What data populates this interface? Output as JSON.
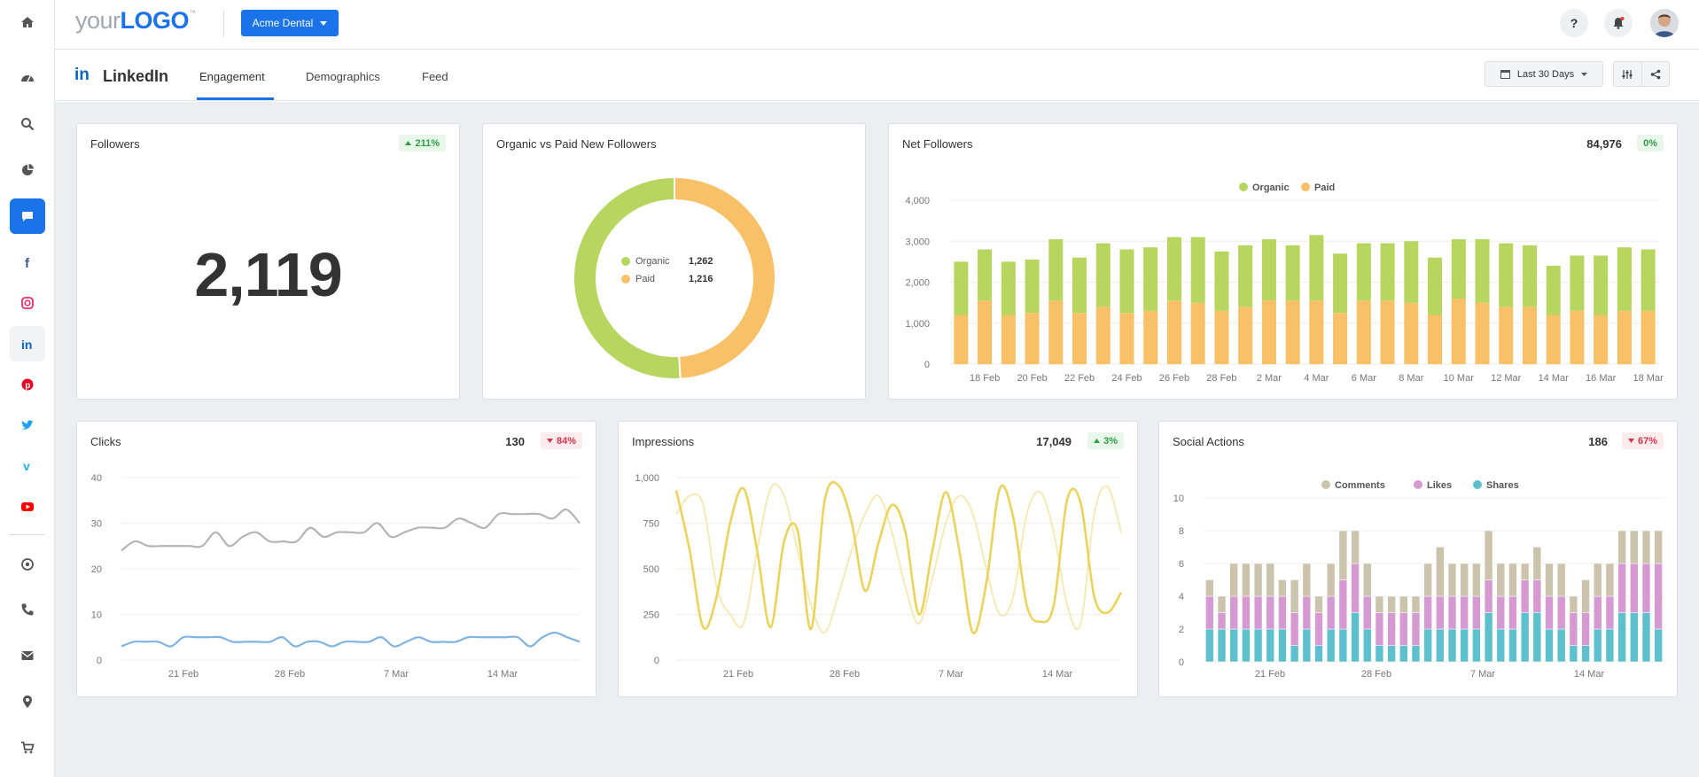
{
  "header": {
    "logo_prefix": "your",
    "logo_brand": "LOGO",
    "logo_tm": "™",
    "client_button": "Acme Dental",
    "help_label": "?"
  },
  "subheader": {
    "network_logo": "in",
    "title": "LinkedIn",
    "tabs": [
      {
        "label": "Engagement",
        "active": true
      },
      {
        "label": "Demographics",
        "active": false
      },
      {
        "label": "Feed",
        "active": false
      }
    ],
    "date_range": "Last 30 Days"
  },
  "sidebar": {
    "items": [
      "home",
      "dashboard",
      "search",
      "reports",
      "chat",
      "facebook",
      "instagram",
      "linkedin",
      "pinterest",
      "twitter",
      "vimeo",
      "youtube",
      "call-tracking",
      "phone",
      "email",
      "location",
      "ecommerce"
    ],
    "active": "chat"
  },
  "colors": {
    "accent": "#1a73e8",
    "organic": "#b6d65f",
    "paid": "#f8c167",
    "clicks_gray": "#b5b5b5",
    "clicks_blue": "#80b4df",
    "impressions": "#ead35f",
    "impressions_light": "#f5eab7",
    "comments": "#ccc3ad",
    "likes": "#d69ad3",
    "shares": "#5fc0cd"
  },
  "cards": {
    "followers": {
      "title": "Followers",
      "badge": "211%",
      "value": "2,119"
    },
    "organic_vs_paid": {
      "title": "Organic vs Paid New Followers",
      "legend": [
        {
          "name": "Organic",
          "value": "1,262"
        },
        {
          "name": "Paid",
          "value": "1,216"
        }
      ]
    },
    "net_followers": {
      "title": "Net Followers",
      "total": "84,976",
      "badge": "0%",
      "legend": [
        "Organic",
        "Paid"
      ]
    },
    "clicks": {
      "title": "Clicks",
      "total": "130",
      "badge": "84%"
    },
    "impressions": {
      "title": "Impressions",
      "total": "17,049",
      "badge": "3%"
    },
    "social_actions": {
      "title": "Social Actions",
      "total": "186",
      "badge": "67%",
      "legend": [
        "Comments",
        "Likes",
        "Shares"
      ]
    }
  },
  "chart_data": [
    {
      "type": "pie",
      "title": "Organic vs Paid New Followers",
      "categories": [
        "Organic",
        "Paid"
      ],
      "values": [
        1262,
        1216
      ]
    },
    {
      "type": "bar",
      "title": "Net Followers",
      "stacked": true,
      "categories": [
        "17 Feb",
        "18 Feb",
        "19 Feb",
        "20 Feb",
        "21 Feb",
        "22 Feb",
        "23 Feb",
        "24 Feb",
        "25 Feb",
        "26 Feb",
        "27 Feb",
        "28 Feb",
        "1 Mar",
        "2 Mar",
        "3 Mar",
        "4 Mar",
        "5 Mar",
        "6 Mar",
        "7 Mar",
        "8 Mar",
        "9 Mar",
        "10 Mar",
        "11 Mar",
        "12 Mar",
        "13 Mar",
        "14 Mar",
        "15 Mar",
        "16 Mar",
        "17 Mar",
        "18 Mar"
      ],
      "tick_labels": [
        "18 Feb",
        "20 Feb",
        "22 Feb",
        "24 Feb",
        "26 Feb",
        "28 Feb",
        "2 Mar",
        "4 Mar",
        "6 Mar",
        "8 Mar",
        "10 Mar",
        "12 Mar",
        "14 Mar",
        "16 Mar",
        "18 Mar"
      ],
      "series": [
        {
          "name": "Organic",
          "values": [
            1300,
            1250,
            1300,
            1300,
            1500,
            1350,
            1550,
            1550,
            1550,
            1550,
            1600,
            1450,
            1500,
            1500,
            1350,
            1600,
            1450,
            1400,
            1400,
            1500,
            1400,
            1450,
            1550,
            1550,
            1500,
            1200,
            1350,
            1450,
            1550,
            1500
          ]
        },
        {
          "name": "Paid",
          "values": [
            1200,
            1550,
            1200,
            1250,
            1550,
            1250,
            1400,
            1250,
            1300,
            1550,
            1500,
            1300,
            1400,
            1550,
            1550,
            1550,
            1250,
            1550,
            1550,
            1500,
            1200,
            1600,
            1500,
            1400,
            1400,
            1200,
            1300,
            1200,
            1300,
            1300
          ]
        }
      ],
      "ylim": [
        0,
        4000
      ],
      "yticks": [
        "0",
        "1,000",
        "2,000",
        "3,000",
        "4,000"
      ],
      "legend": "top-center"
    },
    {
      "type": "line",
      "title": "Clicks",
      "x_ticks": [
        "21 Feb",
        "28 Feb",
        "7 Mar",
        "14 Mar"
      ],
      "series": [
        {
          "values": [
            24,
            26,
            25,
            25,
            25,
            25,
            25,
            28,
            25,
            27,
            28,
            26,
            26,
            26,
            29,
            27,
            28,
            28,
            28,
            30,
            27,
            28,
            29,
            29,
            29,
            31,
            30,
            29,
            32,
            32,
            32,
            32,
            31,
            33,
            30
          ]
        },
        {
          "values": [
            3,
            4,
            4,
            4,
            3,
            5,
            5,
            5,
            5,
            4,
            4,
            4,
            4,
            5,
            3,
            4,
            4,
            3,
            4,
            4,
            4,
            5,
            3,
            4,
            5,
            4,
            4,
            4,
            5,
            5,
            5,
            5,
            5,
            3,
            5,
            6,
            5,
            4
          ]
        }
      ],
      "ylim": [
        0,
        40
      ],
      "yticks": [
        "0",
        "10",
        "20",
        "30",
        "40"
      ]
    },
    {
      "type": "line",
      "title": "Impressions",
      "x_ticks": [
        "21 Feb",
        "28 Feb",
        "7 Mar",
        "14 Mar"
      ],
      "series": [
        {
          "values": [
            930,
            600,
            180,
            350,
            750,
            940,
            600,
            180,
            650,
            710,
            170,
            870,
            960,
            760,
            380,
            640,
            850,
            700,
            250,
            600,
            920,
            600,
            150,
            420,
            940,
            780,
            300,
            210,
            300,
            880,
            860,
            350,
            260,
            370
          ]
        },
        {
          "values": [
            800,
            900,
            850,
            400,
            250,
            200,
            600,
            940,
            900,
            600,
            300,
            150,
            350,
            600,
            800,
            900,
            700,
            400,
            200,
            450,
            750,
            900,
            800,
            500,
            250,
            350,
            800,
            920,
            700,
            300,
            200,
            800,
            950,
            700
          ]
        }
      ],
      "ylim": [
        0,
        1000
      ],
      "yticks": [
        "0",
        "250",
        "500",
        "750",
        "1,000"
      ]
    },
    {
      "type": "bar",
      "title": "Social Actions",
      "stacked": true,
      "x_ticks": [
        "21 Feb",
        "28 Feb",
        "7 Mar",
        "14 Mar"
      ],
      "series": [
        {
          "name": "Shares",
          "values": [
            2,
            2,
            2,
            2,
            2,
            2,
            2,
            1,
            2,
            1,
            2,
            2,
            3,
            2,
            1,
            1,
            1,
            1,
            2,
            2,
            2,
            2,
            2,
            3,
            2,
            2,
            3,
            3,
            2,
            2,
            1,
            1,
            2,
            2,
            3,
            3,
            3,
            2
          ]
        },
        {
          "name": "Likes",
          "values": [
            2,
            1,
            2,
            2,
            2,
            2,
            2,
            2,
            2,
            2,
            2,
            3,
            3,
            2,
            2,
            2,
            2,
            2,
            2,
            2,
            2,
            2,
            2,
            2,
            2,
            2,
            2,
            2,
            2,
            2,
            2,
            2,
            2,
            2,
            3,
            3,
            3,
            4
          ]
        },
        {
          "name": "Comments",
          "values": [
            1,
            1,
            2,
            2,
            2,
            2,
            1,
            2,
            2,
            1,
            2,
            3,
            2,
            2,
            1,
            1,
            1,
            1,
            2,
            3,
            2,
            2,
            2,
            3,
            2,
            2,
            1,
            2,
            2,
            2,
            1,
            2,
            2,
            2,
            2,
            2,
            2,
            2
          ]
        }
      ],
      "ylim": [
        0,
        10
      ],
      "yticks": [
        "0",
        "2",
        "4",
        "6",
        "8",
        "10"
      ],
      "legend": "top-center"
    }
  ]
}
